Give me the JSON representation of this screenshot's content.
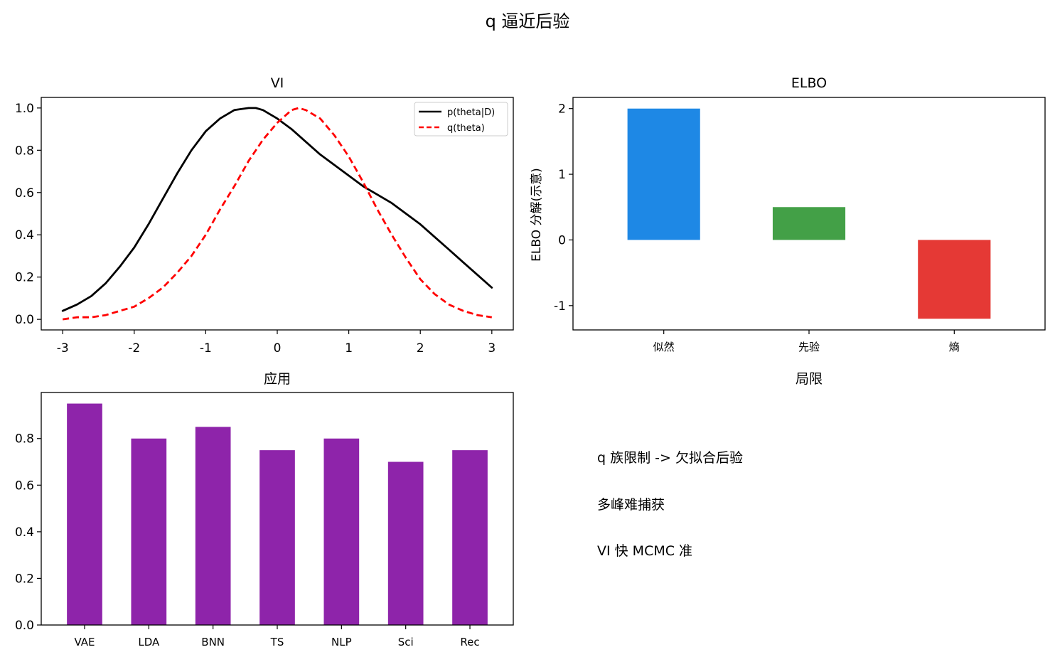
{
  "suptitle": "q 逼近后验",
  "chart_data": [
    {
      "type": "line",
      "title": "VI",
      "xlabel": "",
      "ylabel": "",
      "xlim": [
        -3.3,
        3.3
      ],
      "ylim": [
        -0.05,
        1.05
      ],
      "xticks": [
        -3,
        -2,
        -1,
        0,
        1,
        2,
        3
      ],
      "yticks": [
        0.0,
        0.2,
        0.4,
        0.6,
        0.8,
        1.0
      ],
      "legend_position": "top-right",
      "series": [
        {
          "name": "p(theta|D)",
          "color": "#000000",
          "dash": "solid",
          "x": [
            -3.0,
            -2.8,
            -2.6,
            -2.4,
            -2.2,
            -2.0,
            -1.8,
            -1.6,
            -1.4,
            -1.2,
            -1.0,
            -0.8,
            -0.6,
            -0.4,
            -0.3,
            -0.2,
            0.0,
            0.2,
            0.4,
            0.6,
            0.8,
            1.0,
            1.2,
            1.4,
            1.6,
            1.8,
            2.0,
            2.2,
            2.4,
            2.6,
            2.8,
            3.0
          ],
          "y": [
            0.04,
            0.07,
            0.11,
            0.17,
            0.25,
            0.34,
            0.45,
            0.57,
            0.69,
            0.8,
            0.89,
            0.95,
            0.99,
            1.0,
            1.0,
            0.99,
            0.95,
            0.9,
            0.84,
            0.78,
            0.73,
            0.68,
            0.63,
            0.59,
            0.55,
            0.5,
            0.45,
            0.39,
            0.33,
            0.27,
            0.21,
            0.15
          ]
        },
        {
          "name": "q(theta)",
          "color": "#ff0000",
          "dash": "dashed",
          "x": [
            -3.0,
            -2.8,
            -2.6,
            -2.4,
            -2.2,
            -2.0,
            -1.8,
            -1.6,
            -1.4,
            -1.2,
            -1.0,
            -0.8,
            -0.6,
            -0.4,
            -0.2,
            0.0,
            0.2,
            0.3,
            0.4,
            0.6,
            0.8,
            1.0,
            1.2,
            1.4,
            1.6,
            1.8,
            2.0,
            2.2,
            2.4,
            2.6,
            2.8,
            3.0
          ],
          "y": [
            0.0,
            0.01,
            0.01,
            0.02,
            0.04,
            0.06,
            0.1,
            0.15,
            0.22,
            0.3,
            0.4,
            0.52,
            0.63,
            0.75,
            0.85,
            0.93,
            0.99,
            1.0,
            0.99,
            0.95,
            0.87,
            0.77,
            0.65,
            0.52,
            0.4,
            0.29,
            0.19,
            0.12,
            0.07,
            0.04,
            0.02,
            0.01
          ]
        }
      ]
    },
    {
      "type": "bar",
      "title": "ELBO",
      "xlabel": "",
      "ylabel": "ELBO 分解(示意)",
      "categories": [
        "似然",
        "先验",
        "熵"
      ],
      "values": [
        2.0,
        0.5,
        -1.2
      ],
      "colors": [
        "#1e88e5",
        "#43a047",
        "#e53935"
      ],
      "ylim": [
        -1.37,
        2.17
      ],
      "yticks": [
        -1,
        0,
        1,
        2
      ]
    },
    {
      "type": "bar",
      "title": "应用",
      "xlabel": "",
      "ylabel": "",
      "categories": [
        "VAE",
        "LDA",
        "BNN",
        "TS",
        "NLP",
        "Sci",
        "Rec"
      ],
      "values": [
        0.95,
        0.8,
        0.85,
        0.75,
        0.8,
        0.7,
        0.75
      ],
      "colors": [
        "#8e24aa"
      ],
      "ylim": [
        0,
        0.9975
      ],
      "yticks": [
        0.0,
        0.2,
        0.4,
        0.6,
        0.8
      ]
    }
  ],
  "notes_panel": {
    "title": "局限",
    "lines": [
      "q 族限制 -> 欠拟合后验",
      "多峰难捕获",
      "VI 快 MCMC 准"
    ]
  }
}
